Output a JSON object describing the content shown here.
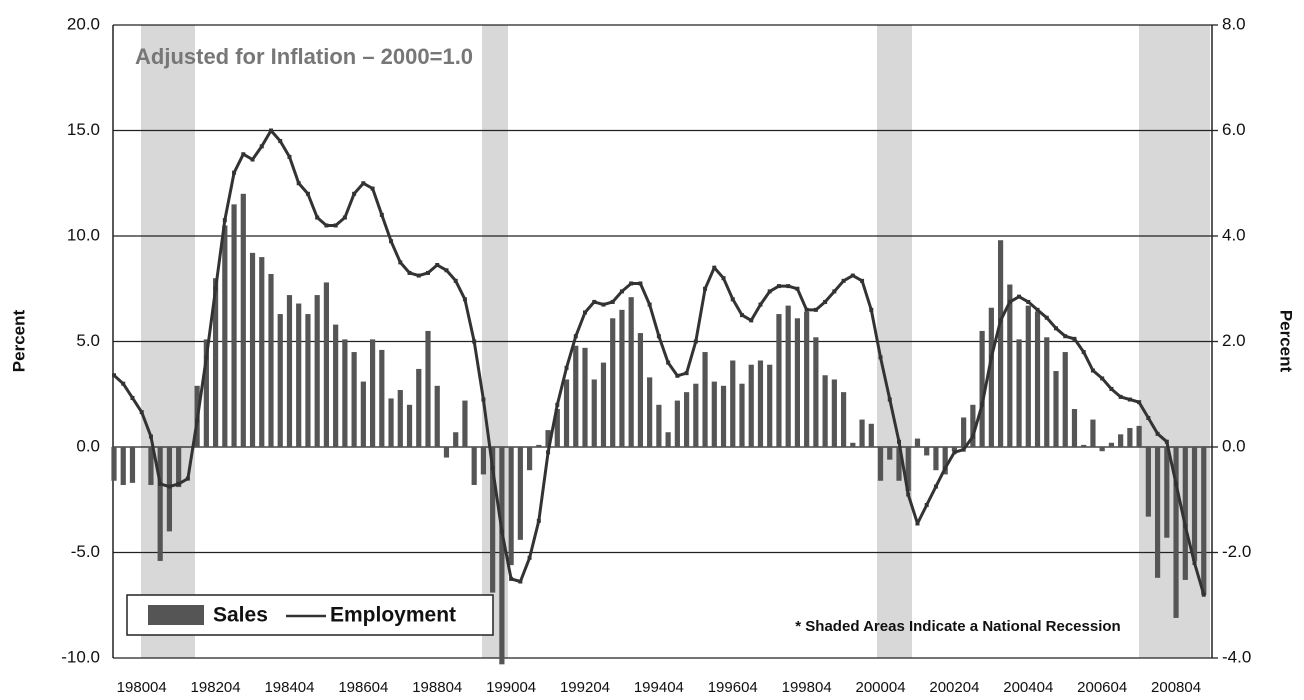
{
  "chart_data": {
    "type": "bar",
    "annotations": [
      "Adjusted for Inflation – 2000=1.0",
      "* Shaded Areas Indicate a National Recession"
    ],
    "ylabel": "Percent",
    "y2label": "Percent",
    "categories": [
      null,
      null,
      null,
      "198004",
      null,
      null,
      null,
      null,
      null,
      null,
      null,
      "198204",
      null,
      null,
      null,
      null,
      null,
      null,
      null,
      "198404",
      null,
      null,
      null,
      null,
      null,
      null,
      null,
      "198604",
      null,
      null,
      null,
      null,
      null,
      null,
      null,
      "198804",
      null,
      null,
      null,
      null,
      null,
      null,
      null,
      "199004",
      null,
      null,
      null,
      null,
      null,
      null,
      null,
      "199204",
      null,
      null,
      null,
      null,
      null,
      null,
      null,
      "199404",
      null,
      null,
      null,
      null,
      null,
      null,
      null,
      "199604",
      null,
      null,
      null,
      null,
      null,
      null,
      null,
      "199804",
      null,
      null,
      null,
      null,
      null,
      null,
      null,
      "200004",
      null,
      null,
      null,
      null,
      null,
      null,
      null,
      "200204",
      null,
      null,
      null,
      null,
      null,
      null,
      null,
      "200404",
      null,
      null,
      null,
      null,
      null,
      null,
      null,
      "200604",
      null,
      null,
      null,
      null,
      null,
      null,
      null,
      "200804",
      null,
      null,
      null
    ],
    "series": [
      {
        "name": "Sales",
        "type": "bar",
        "color": "#555555",
        "values": [
          -1.6,
          -1.8,
          -1.7,
          0,
          -1.8,
          -5.4,
          -4.0,
          -1.9,
          0,
          2.9,
          5.1,
          8.0,
          10.5,
          11.5,
          12.0,
          9.2,
          9.0,
          8.2,
          6.3,
          7.2,
          6.8,
          6.3,
          7.2,
          7.8,
          5.8,
          5.1,
          4.5,
          3.1,
          5.1,
          4.6,
          2.3,
          2.7,
          2.0,
          3.7,
          5.5,
          2.9,
          -0.5,
          0.7,
          2.2,
          -1.8,
          -1.3,
          -6.9,
          -10.3,
          -5.6,
          -4.4,
          -1.1,
          0.1,
          0.8,
          1.8,
          3.2,
          4.8,
          4.7,
          3.2,
          4.0,
          6.1,
          6.5,
          7.1,
          5.4,
          3.3,
          2.0,
          0.7,
          2.2,
          2.6,
          3.0,
          4.5,
          3.1,
          2.9,
          4.1,
          3.0,
          3.9,
          4.1,
          3.9,
          6.3,
          6.7,
          6.1,
          6.4,
          5.2,
          3.4,
          3.2,
          2.6,
          0.2,
          1.3,
          1.1,
          -1.6,
          -0.6,
          -1.6,
          -2.1,
          0.4,
          -0.4,
          -1.1,
          -1.3,
          -0.2,
          1.4,
          2.0,
          5.5,
          6.6,
          9.8,
          7.7,
          5.1,
          6.7,
          6.4,
          5.2,
          3.6,
          4.5,
          1.8,
          0.1,
          1.3,
          -0.2,
          0.2,
          0.6,
          0.9,
          1.0,
          -3.3,
          -6.2,
          -4.3,
          -8.1,
          -6.3,
          -5.4,
          -7.0
        ]
      },
      {
        "name": "Employment",
        "type": "line",
        "axis": "y2",
        "color": "#333333",
        "values": [
          1.36,
          1.2,
          0.93,
          0.66,
          0.2,
          -0.7,
          -0.75,
          -0.7,
          -0.6,
          0.5,
          1.7,
          3.0,
          4.3,
          5.2,
          5.55,
          5.45,
          5.7,
          6.0,
          5.8,
          5.5,
          5.0,
          4.8,
          4.35,
          4.2,
          4.2,
          4.35,
          4.8,
          5.0,
          4.9,
          4.4,
          3.9,
          3.5,
          3.3,
          3.25,
          3.3,
          3.45,
          3.35,
          3.15,
          2.8,
          2.0,
          0.9,
          -0.4,
          -1.6,
          -2.5,
          -2.55,
          -2.1,
          -1.4,
          -0.1,
          0.8,
          1.5,
          2.1,
          2.55,
          2.75,
          2.7,
          2.75,
          2.95,
          3.1,
          3.1,
          2.7,
          2.1,
          1.6,
          1.35,
          1.4,
          2.0,
          3.0,
          3.4,
          3.2,
          2.8,
          2.5,
          2.4,
          2.7,
          2.95,
          3.05,
          3.05,
          3.0,
          2.6,
          2.6,
          2.75,
          2.95,
          3.15,
          3.25,
          3.15,
          2.6,
          1.7,
          0.9,
          0.1,
          -0.9,
          -1.45,
          -1.1,
          -0.75,
          -0.4,
          -0.1,
          -0.05,
          0.2,
          0.8,
          1.7,
          2.4,
          2.75,
          2.85,
          2.75,
          2.6,
          2.45,
          2.25,
          2.1,
          2.05,
          1.8,
          1.45,
          1.3,
          1.1,
          0.95,
          0.9,
          0.85,
          0.55,
          0.25,
          0.1,
          -0.7,
          -1.5,
          -2.2,
          -2.8
        ]
      }
    ],
    "ylim": [
      -10,
      20
    ],
    "yticks": [
      {
        "value": -10,
        "label": "-10.0"
      },
      {
        "value": -5,
        "label": "-5.0"
      },
      {
        "value": 0,
        "label": "0.0"
      },
      {
        "value": 5,
        "label": "5.0"
      },
      {
        "value": 10,
        "label": "10.0"
      },
      {
        "value": 15,
        "label": "15.0"
      },
      {
        "value": 20,
        "label": "20.0"
      }
    ],
    "y2lim": [
      -4,
      8
    ],
    "y2ticks": [
      {
        "value": -4,
        "label": "-4.0"
      },
      {
        "value": -2,
        "label": "-2.0"
      },
      {
        "value": 0,
        "label": "0.0"
      },
      {
        "value": 2,
        "label": "2.0"
      },
      {
        "value": 4,
        "label": "4.0"
      },
      {
        "value": 6,
        "label": "6.0"
      },
      {
        "value": 8,
        "label": "8.0"
      }
    ],
    "grid": true,
    "legend": "lower left"
  }
}
